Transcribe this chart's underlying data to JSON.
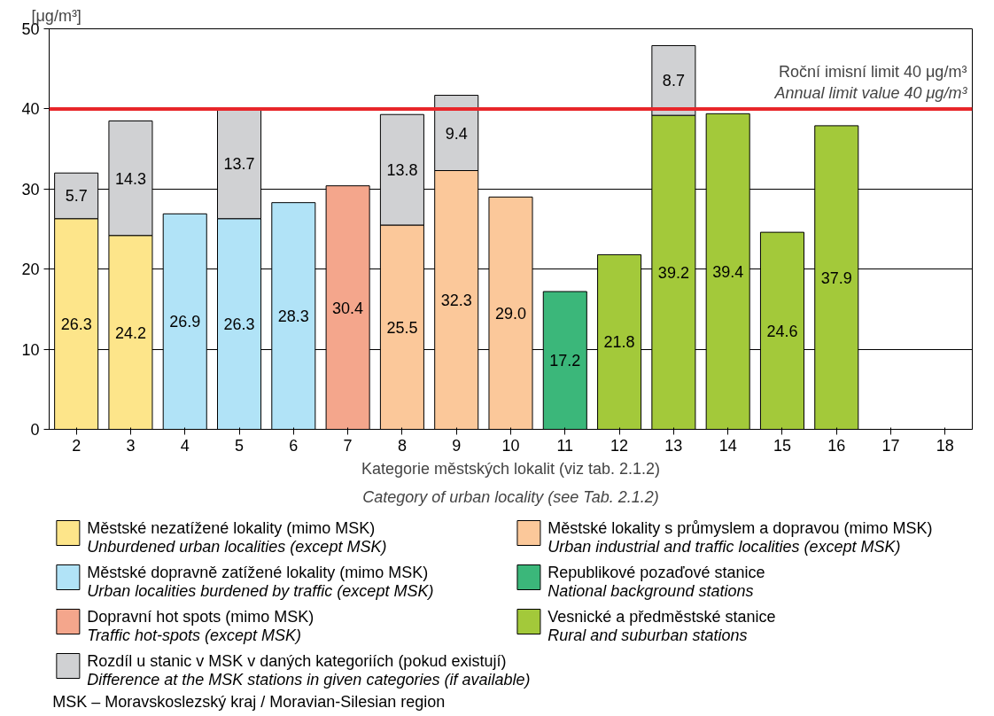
{
  "chart_data": {
    "type": "bar",
    "stacked": true,
    "categories": [
      "2",
      "3",
      "4",
      "5",
      "6",
      "7",
      "8",
      "9",
      "10",
      "11",
      "12",
      "13",
      "14",
      "15",
      "16",
      "17",
      "18"
    ],
    "series": [
      {
        "name": "Městské nezatížené lokality (mimo MSK)\nUnburdened urban localities (except MSK)",
        "color": "#fde58a",
        "values": [
          26.3,
          24.2,
          null,
          null,
          null,
          null,
          null,
          null,
          null,
          null,
          null,
          null,
          null,
          null,
          null,
          null,
          null
        ],
        "value_labels": [
          "26.3",
          "24.2",
          null,
          null,
          null,
          null,
          null,
          null,
          null,
          null,
          null,
          null,
          null,
          null,
          null,
          null,
          null
        ]
      },
      {
        "name": "Městské dopravně zatížené lokality (mimo MSK)\nUrban localities burdened by traffic (except MSK)",
        "color": "#b1e3f7",
        "values": [
          null,
          null,
          26.9,
          26.3,
          28.3,
          null,
          null,
          null,
          null,
          null,
          null,
          null,
          null,
          null,
          null,
          null,
          null
        ],
        "value_labels": [
          null,
          null,
          "26.9",
          "26.3",
          "28.3",
          null,
          null,
          null,
          null,
          null,
          null,
          null,
          null,
          null,
          null,
          null,
          null
        ]
      },
      {
        "name": "Dopravní hot spots (mimo MSK)\nTraffic hot-spots (except MSK)",
        "color": "#f4a68c",
        "values": [
          null,
          null,
          null,
          null,
          null,
          30.4,
          null,
          null,
          null,
          null,
          null,
          null,
          null,
          null,
          null,
          null,
          null
        ],
        "value_labels": [
          null,
          null,
          null,
          null,
          null,
          "30.4",
          null,
          null,
          null,
          null,
          null,
          null,
          null,
          null,
          null,
          null,
          null
        ]
      },
      {
        "name": "Městské lokality s průmyslem a dopravou (mimo MSK)\nUrban industrial and traffic localities (except MSK)",
        "color": "#fbc89a",
        "values": [
          null,
          null,
          null,
          null,
          null,
          null,
          25.5,
          32.3,
          29.0,
          null,
          null,
          null,
          null,
          null,
          null,
          null,
          null
        ],
        "value_labels": [
          null,
          null,
          null,
          null,
          null,
          null,
          "25.5",
          "32.3",
          "29.0",
          null,
          null,
          null,
          null,
          null,
          null,
          null,
          null
        ]
      },
      {
        "name": "Republikové pozaďové stanice\nNational background stations",
        "color": "#3bb77a",
        "values": [
          null,
          null,
          null,
          null,
          null,
          null,
          null,
          null,
          null,
          17.2,
          null,
          null,
          null,
          null,
          null,
          null,
          null
        ],
        "value_labels": [
          null,
          null,
          null,
          null,
          null,
          null,
          null,
          null,
          null,
          "17.2",
          null,
          null,
          null,
          null,
          null,
          null,
          null
        ]
      },
      {
        "name": "Vesnické a předměstské stanice\nRural and suburban stations",
        "color": "#a3c93a",
        "values": [
          null,
          null,
          null,
          null,
          null,
          null,
          null,
          null,
          null,
          null,
          21.8,
          39.2,
          39.4,
          24.6,
          37.9,
          null,
          null
        ],
        "value_labels": [
          null,
          null,
          null,
          null,
          null,
          null,
          null,
          null,
          null,
          null,
          "21.8",
          "39.2",
          "39.4",
          "24.6",
          "37.9",
          null,
          null
        ]
      },
      {
        "name": "Rozdíl u stanic v MSK v daných kategoriích (pokud existují)\nDifference at the MSK stations in given categories (if available)",
        "color": "#d0d1d3",
        "values": [
          5.7,
          14.3,
          null,
          13.7,
          null,
          null,
          13.8,
          9.4,
          null,
          null,
          null,
          8.7,
          null,
          null,
          null,
          null,
          null
        ],
        "value_labels": [
          "5.7",
          "14.3",
          null,
          "13.7",
          null,
          null,
          "13.8",
          "9.4",
          null,
          null,
          null,
          "8.7",
          null,
          null,
          null,
          null,
          null
        ]
      }
    ],
    "ylim": [
      0,
      50
    ],
    "yticks": [
      0,
      10,
      20,
      30,
      40,
      50
    ],
    "grid": "y",
    "legend": "bottom",
    "ylabel": "[μg/m³]",
    "xlabel": "Kategorie městských lokalit (viz tab. 2.1.2)\nCategory of urban locality (see Tab. 2.1.2)",
    "ref_lines": [
      {
        "axis": "y",
        "value": 40,
        "color": "#e8262a",
        "label": "Roční imisní limit 40 μg/m³\nAnnual limit value 40 μg/m³"
      }
    ],
    "annotations": [
      "MSK – Moravskoslezský kraj / Moravian-Silesian region"
    ]
  }
}
